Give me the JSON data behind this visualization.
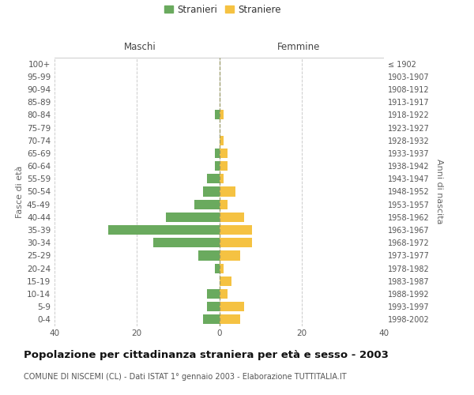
{
  "age_groups": [
    "100+",
    "95-99",
    "90-94",
    "85-89",
    "80-84",
    "75-79",
    "70-74",
    "65-69",
    "60-64",
    "55-59",
    "50-54",
    "45-49",
    "40-44",
    "35-39",
    "30-34",
    "25-29",
    "20-24",
    "15-19",
    "10-14",
    "5-9",
    "0-4"
  ],
  "birth_years": [
    "≤ 1902",
    "1903-1907",
    "1908-1912",
    "1913-1917",
    "1918-1922",
    "1923-1927",
    "1928-1932",
    "1933-1937",
    "1938-1942",
    "1943-1947",
    "1948-1952",
    "1953-1957",
    "1958-1962",
    "1963-1967",
    "1968-1972",
    "1973-1977",
    "1978-1982",
    "1983-1987",
    "1988-1992",
    "1993-1997",
    "1998-2002"
  ],
  "males": [
    0,
    0,
    0,
    0,
    1,
    0,
    0,
    1,
    1,
    3,
    4,
    6,
    13,
    27,
    16,
    5,
    1,
    0,
    3,
    3,
    4
  ],
  "females": [
    0,
    0,
    0,
    0,
    1,
    0,
    1,
    2,
    2,
    1,
    4,
    2,
    6,
    8,
    8,
    5,
    1,
    3,
    2,
    6,
    5
  ],
  "male_color": "#6aaa5e",
  "female_color": "#f5c242",
  "background_color": "#ffffff",
  "grid_color": "#cccccc",
  "bar_height": 0.75,
  "xlim": [
    -40,
    40
  ],
  "xticks": [
    -40,
    -20,
    0,
    20,
    40
  ],
  "header_left": "Maschi",
  "header_right": "Femmine",
  "ylabel_left": "Fasce di età",
  "ylabel_right": "Anni di nascita",
  "legend_male": "Stranieri",
  "legend_female": "Straniere",
  "title": "Popolazione per cittadinanza straniera per età e sesso - 2003",
  "subtitle": "COMUNE DI NISCEMI (CL) - Dati ISTAT 1° gennaio 2003 - Elaborazione TUTTITALIA.IT",
  "title_fontsize": 9.5,
  "subtitle_fontsize": 7.0,
  "tick_fontsize": 7.5,
  "legend_fontsize": 8.5,
  "header_fontsize": 8.5,
  "ylabel_fontsize": 8.0,
  "center_line_color": "#999966",
  "center_line_style": "--"
}
